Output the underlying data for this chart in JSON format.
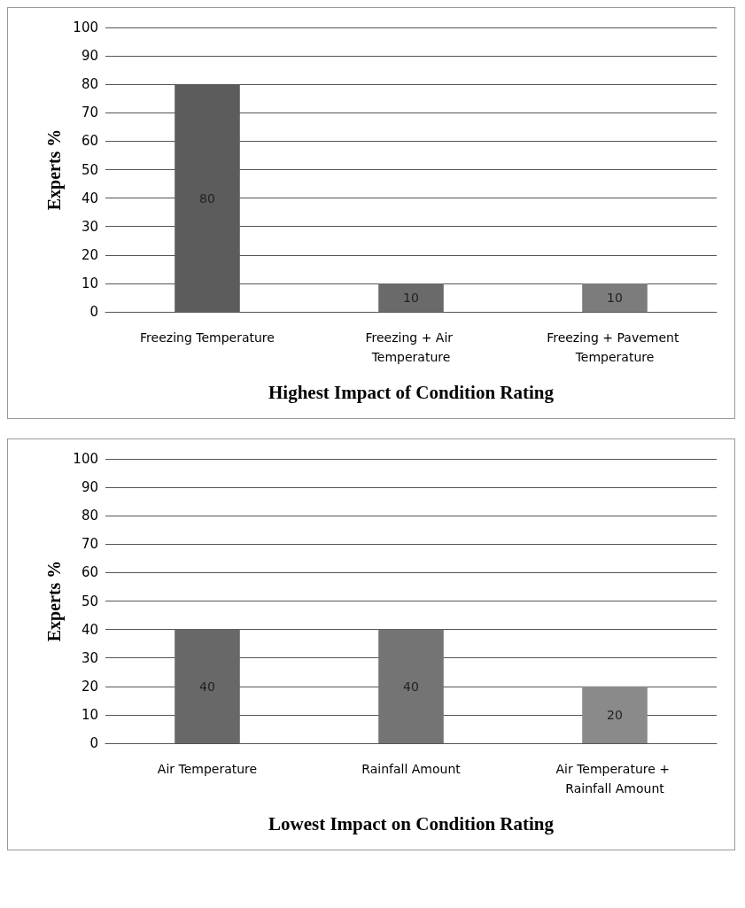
{
  "chart_data": [
    {
      "type": "bar",
      "xlabel": "Highest Impact of Condition Rating",
      "ylabel": "Experts %",
      "categories": [
        "Freezing Temperature",
        "Freezing + Air Temperature",
        "Freezing + Pavement Temperature"
      ],
      "values": [
        80,
        10,
        10
      ],
      "colors": [
        "#5c5c5c",
        "#6a6a6a",
        "#7c7c7c"
      ],
      "ylim": [
        0,
        100
      ],
      "yticks": [
        0,
        10,
        20,
        30,
        40,
        50,
        60,
        70,
        80,
        90,
        100
      ],
      "grid": "y",
      "data_labels": true
    },
    {
      "type": "bar",
      "xlabel": "Lowest Impact on Condition Rating",
      "ylabel": "Experts %",
      "categories": [
        "Air Temperature",
        "Rainfall Amount",
        "Air Temperature + Rainfall Amount"
      ],
      "values": [
        40,
        40,
        20
      ],
      "colors": [
        "#686868",
        "#747474",
        "#8a8a8a"
      ],
      "ylim": [
        0,
        100
      ],
      "yticks": [
        0,
        10,
        20,
        30,
        40,
        50,
        60,
        70,
        80,
        90,
        100
      ],
      "grid": "y",
      "data_labels": true
    }
  ]
}
